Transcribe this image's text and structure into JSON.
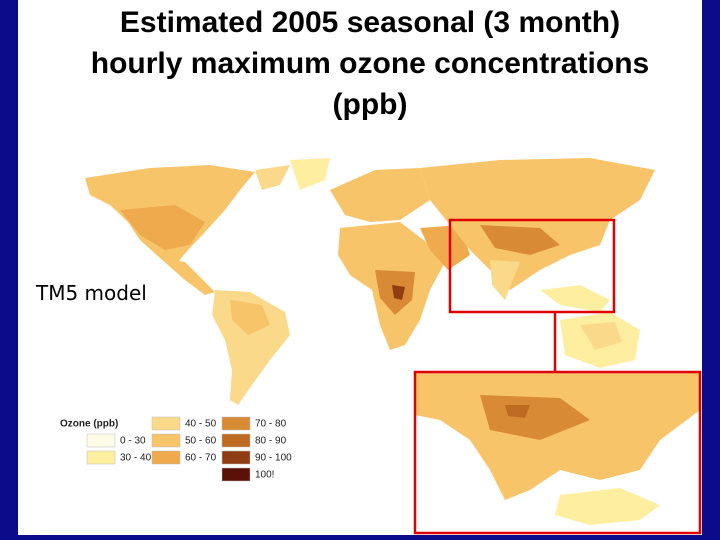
{
  "title_lines": [
    "Estimated 2005 seasonal (3 month)",
    "hourly maximum ozone concentrations",
    "(ppb)"
  ],
  "model_label": "TM5 model",
  "legend": {
    "title": "Ozone (ppb)",
    "items": [
      {
        "label": "0 - 30",
        "color": "#fffbe6"
      },
      {
        "label": "30 - 40",
        "color": "#fdeea0"
      },
      {
        "label": "40 - 50",
        "color": "#fbd98a"
      },
      {
        "label": "50 - 60",
        "color": "#f7c46a"
      },
      {
        "label": "60 - 70",
        "color": "#eeaa4c"
      },
      {
        "label": "70 - 80",
        "color": "#d98a34"
      },
      {
        "label": "80 - 90",
        "color": "#bf6a22"
      },
      {
        "label": "90 - 100",
        "color": "#8e3e12"
      },
      {
        "label": "100!",
        "color": "#5a1208"
      }
    ]
  }
}
